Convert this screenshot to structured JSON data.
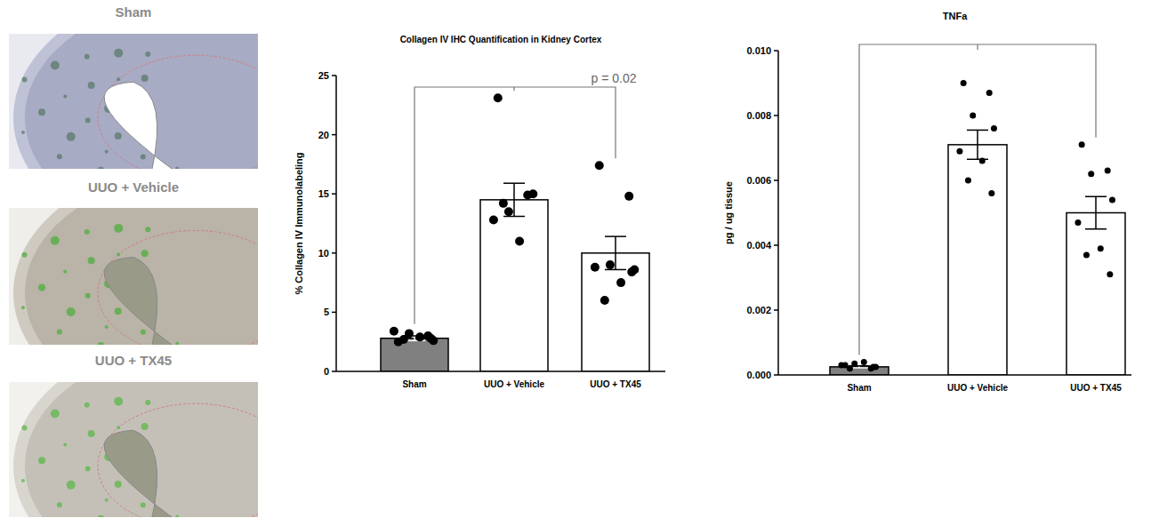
{
  "images": {
    "labels": [
      "Sham",
      "UUO + Vehicle",
      "UUO + TX45"
    ]
  },
  "chart_data": [
    {
      "type": "bar",
      "title": "Collagen IV IHC Quantification in Kidney Cortex",
      "y_label": "% Collagen IV Immunolabeling",
      "categories": [
        "Sham",
        "UUO + Vehicle",
        "UUO + TX45"
      ],
      "values": [
        2.8,
        14.5,
        10.0
      ],
      "errors": [
        0.2,
        1.4,
        1.4
      ],
      "points": [
        [
          2.5,
          3.0,
          3.2,
          2.6,
          3.4,
          2.9,
          2.7,
          2.8
        ],
        [
          23.1,
          14.9,
          13.5,
          15.0,
          12.8,
          11.0,
          14.2
        ],
        [
          17.4,
          14.8,
          9.0,
          8.6,
          8.8,
          7.5,
          6.0,
          8.4
        ]
      ],
      "colors": [
        "#808080",
        "#ffffff",
        "#ffffff"
      ],
      "annotation": "p = 0.02",
      "ylim": [
        0,
        25
      ],
      "yticks": [
        0,
        5,
        10,
        15,
        20,
        25
      ],
      "grid": false
    },
    {
      "type": "bar",
      "title": "TNFa",
      "y_label": "pg / ug tissue",
      "categories": [
        "Sham",
        "UUO + Vehicle",
        "UUO + TX45"
      ],
      "values": [
        0.00025,
        0.0071,
        0.005
      ],
      "errors": [
        3e-05,
        0.00045,
        0.0005
      ],
      "points": [
        [
          0.0003,
          0.0002,
          0.00035,
          0.00025,
          0.0003,
          0.0004,
          0.0002,
          0.00025
        ],
        [
          0.009,
          0.0087,
          0.008,
          0.0076,
          0.0069,
          0.0066,
          0.006,
          0.0056
        ],
        [
          0.0071,
          0.0063,
          0.0062,
          0.0054,
          0.0047,
          0.0039,
          0.0037,
          0.0031
        ]
      ],
      "colors": [
        "#808080",
        "#ffffff",
        "#ffffff"
      ],
      "ylim": [
        0,
        0.01
      ],
      "yticks": [
        {
          "value": 0,
          "label": "0.000"
        },
        {
          "value": 0.002,
          "label": "0.002"
        },
        {
          "value": 0.004,
          "label": "0.004"
        },
        {
          "value": 0.006,
          "label": "0.006"
        },
        {
          "value": 0.008,
          "label": "0.008"
        },
        {
          "value": 0.01,
          "label": "0.010"
        }
      ],
      "grid": false
    }
  ]
}
